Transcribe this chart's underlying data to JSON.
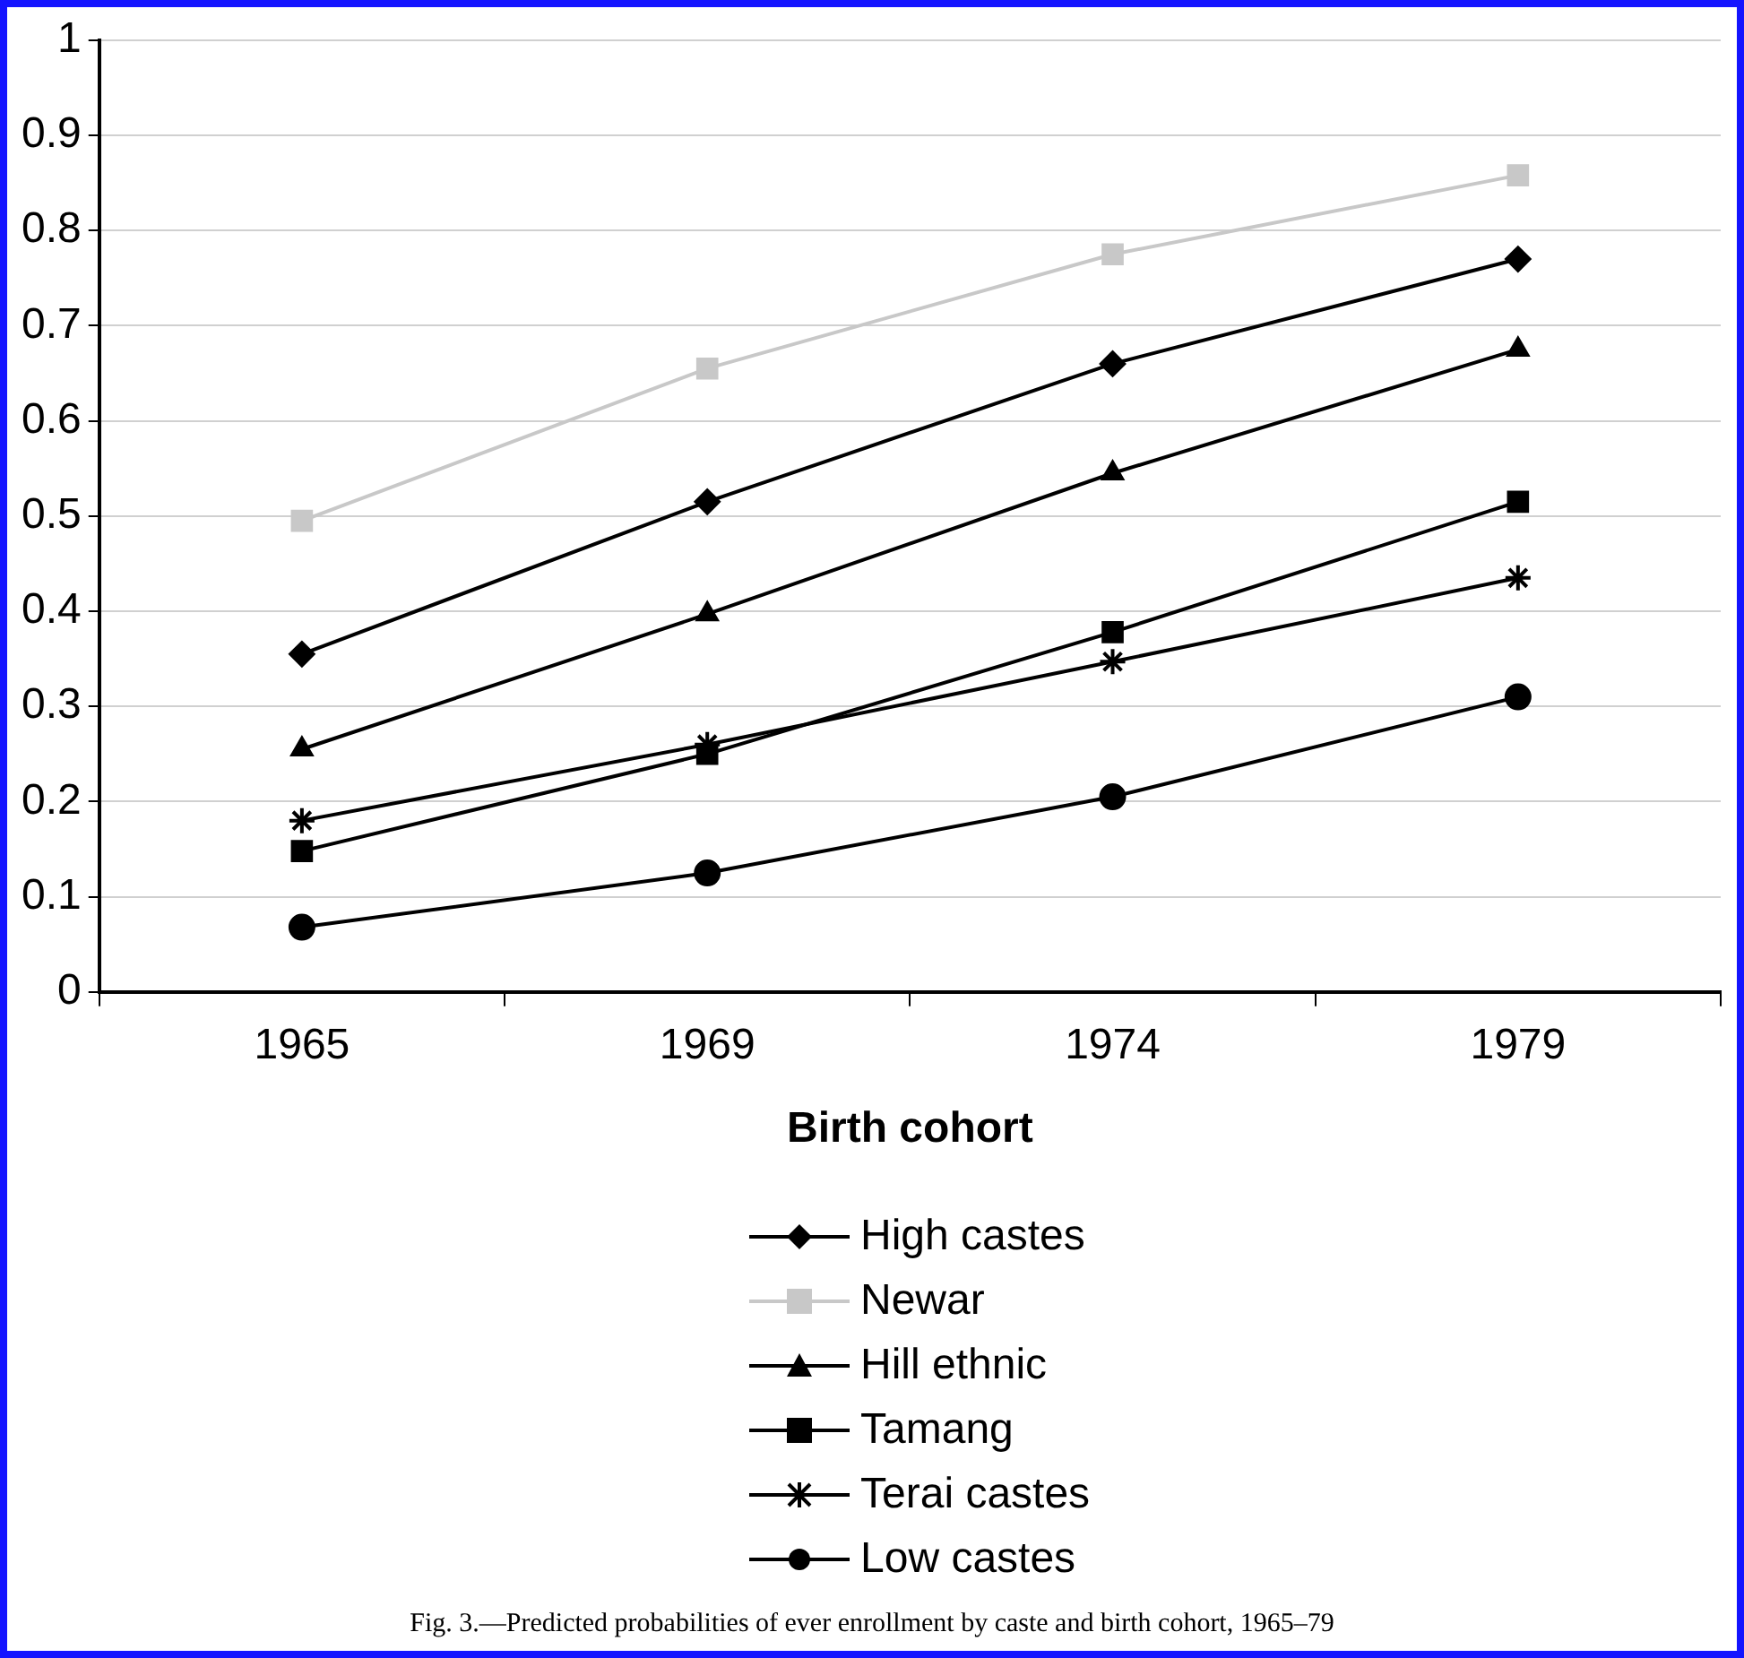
{
  "chart_data": {
    "type": "line",
    "xlabel": "Birth cohort",
    "categories": [
      "1965",
      "1969",
      "1974",
      "1979"
    ],
    "ylim": [
      0,
      1
    ],
    "yticks": [
      0,
      0.1,
      0.2,
      0.3,
      0.4,
      0.5,
      0.6,
      0.7,
      0.8,
      0.9,
      1
    ],
    "grid": "y",
    "legend": "bottom",
    "line_style": "solid",
    "series": [
      {
        "name": "High castes",
        "color": "#000000",
        "marker": "diamond",
        "values": [
          0.355,
          0.515,
          0.66,
          0.77
        ]
      },
      {
        "name": "Newar",
        "color": "#c8c8c8",
        "marker": "square",
        "values": [
          0.495,
          0.655,
          0.775,
          0.858
        ]
      },
      {
        "name": "Hill ethnic",
        "color": "#000000",
        "marker": "triangle",
        "values": [
          0.255,
          0.397,
          0.545,
          0.675
        ]
      },
      {
        "name": "Tamang",
        "color": "#000000",
        "marker": "square",
        "values": [
          0.148,
          0.25,
          0.378,
          0.515
        ]
      },
      {
        "name": "Terai castes",
        "color": "#000000",
        "marker": "cross",
        "values": [
          0.18,
          0.26,
          0.347,
          0.435
        ]
      },
      {
        "name": "Low castes",
        "color": "#000000",
        "marker": "circle",
        "values": [
          0.068,
          0.125,
          0.205,
          0.31
        ]
      }
    ],
    "annotations": [
      "Fig. 3.—Predicted probabilities of ever enrollment by caste and birth cohort, 1965–79"
    ]
  }
}
